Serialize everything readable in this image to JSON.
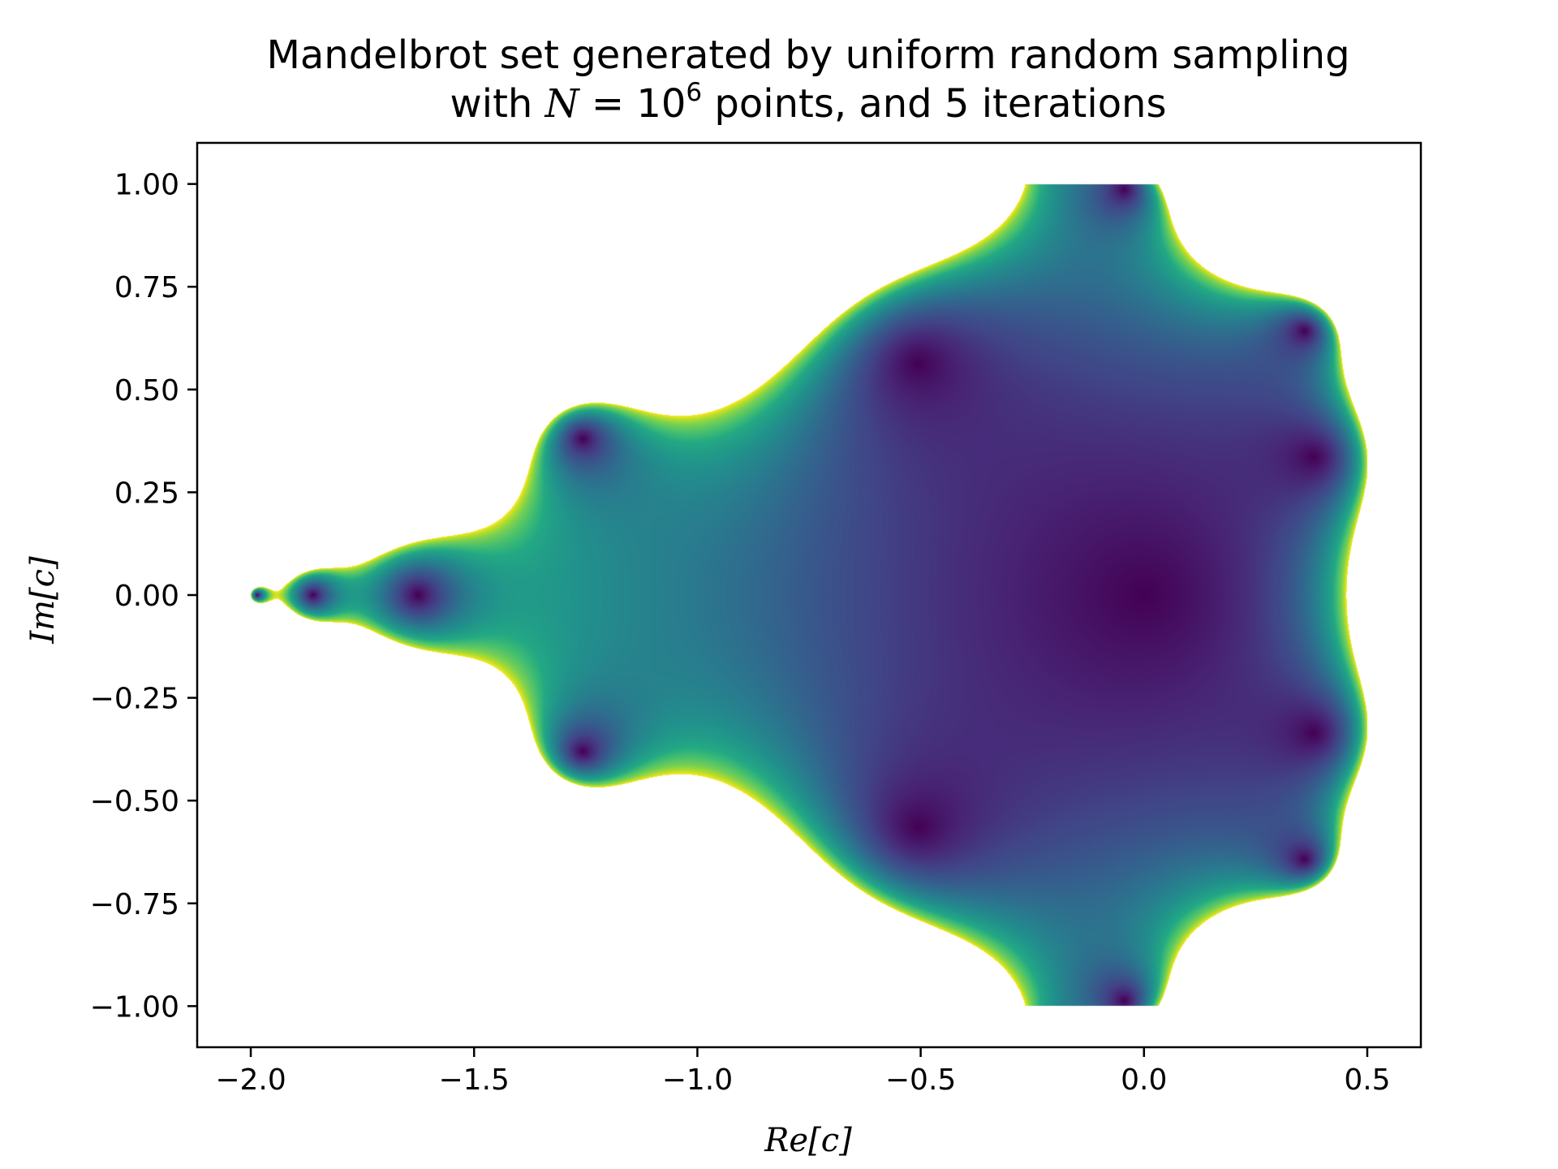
{
  "chart_data": {
    "type": "heatmap",
    "title_line1": "Mandelbrot set generated by uniform random sampling",
    "title_line2_pre": "with ",
    "title_line2_var": "N",
    "title_line2_eq": " = 10",
    "title_line2_exp": "6",
    "title_line2_post": " points, and 5 iterations",
    "xlabel": "Re[c]",
    "ylabel": "Im[c]",
    "xlim": [
      -2.12,
      0.62
    ],
    "ylim": [
      -1.1,
      1.1
    ],
    "sample_region": {
      "x": [
        -2.0,
        0.5
      ],
      "y": [
        -1.0,
        1.0
      ]
    },
    "iterations": 5,
    "num_points": 1000000,
    "colormap": "viridis",
    "xticks": [
      -2.0,
      -1.5,
      -1.0,
      -0.5,
      0.0,
      0.5
    ],
    "xtick_labels": [
      "−2.0",
      "−1.5",
      "−1.0",
      "−0.5",
      "0.0",
      "0.5"
    ],
    "yticks": [
      1.0,
      0.75,
      0.5,
      0.25,
      0.0,
      -0.25,
      -0.5,
      -0.75,
      -1.0
    ],
    "ytick_labels": [
      "1.00",
      "0.75",
      "0.50",
      "0.25",
      "0.00",
      "−0.25",
      "−0.50",
      "−0.75",
      "−1.00"
    ],
    "grid": false,
    "legend": "none"
  }
}
